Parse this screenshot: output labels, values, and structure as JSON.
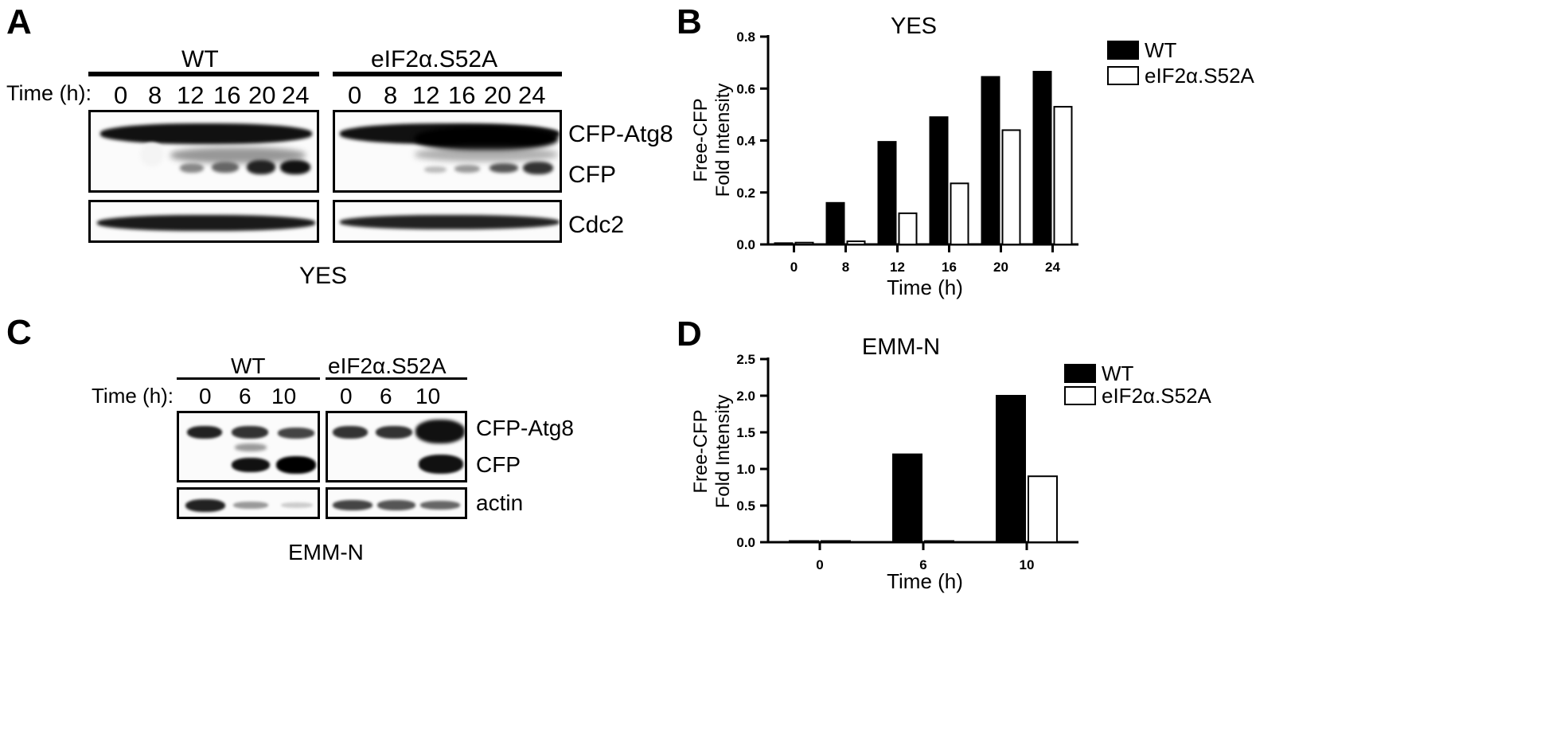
{
  "panels": {
    "A": {
      "label": "A",
      "time_label": "Time (h):",
      "groups": [
        {
          "name": "WT",
          "times": [
            "0",
            "8",
            "12",
            "16",
            "20",
            "24"
          ]
        },
        {
          "name": "eIF2α.S52A",
          "times": [
            "0",
            "8",
            "12",
            "16",
            "20",
            "24"
          ]
        }
      ],
      "band_labels": [
        "CFP-Atg8",
        "CFP",
        "Cdc2"
      ],
      "condition": "YES"
    },
    "C": {
      "label": "C",
      "time_label": "Time (h):",
      "groups": [
        {
          "name": "WT",
          "times": [
            "0",
            "6",
            "10"
          ]
        },
        {
          "name": "eIF2α.S52A",
          "times": [
            "0",
            "6",
            "10"
          ]
        }
      ],
      "band_labels": [
        "CFP-Atg8",
        "CFP",
        "actin"
      ],
      "condition": "EMM-N"
    },
    "B": {
      "label": "B"
    },
    "D": {
      "label": "D"
    }
  },
  "chart_data": [
    {
      "panel": "B",
      "type": "bar",
      "title": "YES",
      "xlabel": "Time (h)",
      "ylabel": [
        "Free-CFP",
        "Fold Intensity"
      ],
      "categories": [
        "0",
        "8",
        "12",
        "16",
        "20",
        "24"
      ],
      "series": [
        {
          "name": "WT",
          "color": "#000000",
          "values": [
            0.005,
            0.16,
            0.395,
            0.49,
            0.645,
            0.665
          ]
        },
        {
          "name": "eIF2α.S52A",
          "color": "#ffffff",
          "values": [
            0.007,
            0.012,
            0.12,
            0.235,
            0.44,
            0.53
          ]
        }
      ],
      "ylim": [
        0,
        0.8
      ],
      "yticks": [
        "0.0",
        "0.2",
        "0.4",
        "0.6",
        "0.8"
      ],
      "legend": "top-right",
      "grid": false
    },
    {
      "panel": "D",
      "type": "bar",
      "title": "EMM-N",
      "xlabel": "Time (h)",
      "ylabel": [
        "Free-CFP",
        "Fold Intensity"
      ],
      "categories": [
        "0",
        "6",
        "10"
      ],
      "series": [
        {
          "name": "WT",
          "color": "#000000",
          "values": [
            0.01,
            1.2,
            2.0
          ]
        },
        {
          "name": "eIF2α.S52A",
          "color": "#ffffff",
          "values": [
            0.0,
            0.01,
            0.9
          ]
        }
      ],
      "ylim": [
        0,
        2.5
      ],
      "yticks": [
        "0.0",
        "0.5",
        "1.0",
        "1.5",
        "2.0",
        "2.5"
      ],
      "legend": "top-right",
      "grid": false
    }
  ]
}
